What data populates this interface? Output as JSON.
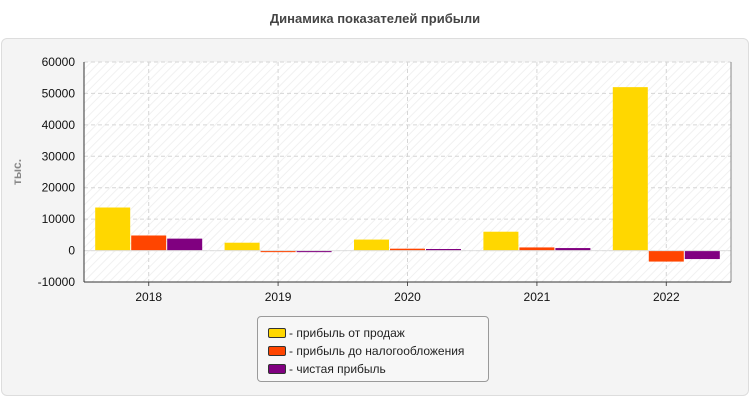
{
  "chart_data": {
    "type": "bar",
    "title": "Динамика показателей прибыли",
    "ylabel": "тыс.",
    "xlabel": "",
    "categories": [
      "2018",
      "2019",
      "2020",
      "2021",
      "2022"
    ],
    "series": [
      {
        "name": "- прибыль от продаж",
        "color": "#FFD700",
        "values": [
          13700,
          2500,
          3500,
          6000,
          52000
        ]
      },
      {
        "name": "- прибыль до налогообложения",
        "color": "#FF4500",
        "values": [
          4800,
          -500,
          600,
          1000,
          -3500
        ]
      },
      {
        "name": "- чистая прибыль",
        "color": "#800080",
        "values": [
          3800,
          -500,
          500,
          800,
          -2700
        ]
      }
    ],
    "ylim": [
      -10000,
      60000
    ],
    "yticks": [
      "-10000",
      "0",
      "10000",
      "20000",
      "30000",
      "40000",
      "50000",
      "60000"
    ],
    "grid": true,
    "legend_position": "bottom-center"
  }
}
